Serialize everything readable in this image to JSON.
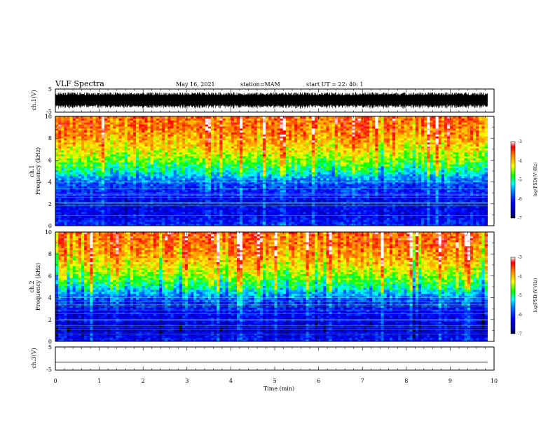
{
  "header": {
    "title": "VLF Spectra",
    "date": "May 16, 2021",
    "station": "station=MAM",
    "start": "start  UT =  22: 40: 1"
  },
  "chart_data": [
    {
      "type": "line",
      "panel": "ch1-waveform",
      "ylabel": "ch.1(V)",
      "ylim": [
        -5,
        5
      ],
      "yticks": [
        "5",
        "-5"
      ],
      "xlim": [
        0,
        10
      ],
      "description_values": {
        "typical_amplitude_V": 3,
        "extends_to_min": 9.85
      }
    },
    {
      "type": "heatmap",
      "panel": "ch1-spectrogram",
      "ylabel": "ch.1\nFrequency (kHz)",
      "ylim": [
        0,
        10
      ],
      "yticks": [
        "0",
        "2",
        "4",
        "6",
        "8",
        "10"
      ],
      "xlim": [
        0,
        10
      ],
      "data_end_min": 9.85,
      "colorbar": {
        "label": "log(PSD)(V²/Hz)",
        "range": [
          -7,
          -3
        ],
        "ticks": [
          "-3",
          "-4",
          "-5",
          "-6",
          "-7"
        ]
      },
      "frequency_profile_kHz": [
        0,
        1,
        2,
        3,
        4,
        5,
        6,
        7,
        8,
        9,
        10
      ],
      "logpsd_profile": [
        -6.0,
        -6.3,
        -6.3,
        -6.1,
        -5.8,
        -5.1,
        -4.6,
        -4.2,
        -3.9,
        -3.7,
        -3.6
      ]
    },
    {
      "type": "heatmap",
      "panel": "ch2-spectrogram",
      "ylabel": "ch.2\nFrequency (kHz)",
      "ylim": [
        0,
        10
      ],
      "yticks": [
        "0",
        "2",
        "4",
        "6",
        "8",
        "10"
      ],
      "xlim": [
        0,
        10
      ],
      "data_end_min": 9.85,
      "colorbar": {
        "label": "log(PSD)(V²/Hz)",
        "range": [
          -7,
          -3
        ],
        "ticks": [
          "-3",
          "-4",
          "-5",
          "-6",
          "-7"
        ]
      },
      "frequency_profile_kHz": [
        0,
        1,
        2,
        3,
        4,
        5,
        6,
        7,
        8,
        9,
        10
      ],
      "logpsd_profile": [
        -6.1,
        -6.4,
        -6.3,
        -6.1,
        -5.7,
        -5.0,
        -4.5,
        -4.1,
        -3.8,
        -3.6,
        -3.5
      ]
    },
    {
      "type": "line",
      "panel": "ch3-waveform",
      "ylabel": "ch.3(V)",
      "ylim": [
        -5,
        5
      ],
      "yticks": [
        "5",
        "-5"
      ],
      "xlim": [
        0,
        10
      ],
      "xlabel": "Time (min)",
      "xticks": [
        "0",
        "1",
        "2",
        "3",
        "4",
        "5",
        "6",
        "7",
        "8",
        "9",
        "10"
      ],
      "constant_value_V": -1.5,
      "data_end_min": 9.85
    }
  ]
}
